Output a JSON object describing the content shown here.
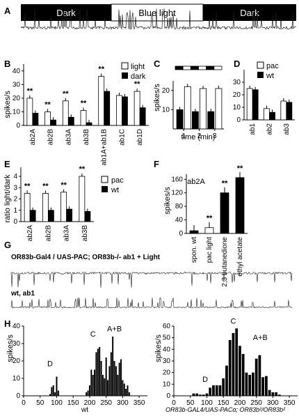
{
  "panels": {
    "a": "A",
    "b": "B",
    "c": "C",
    "d": "D",
    "e": "E",
    "f": "F",
    "g": "G",
    "h": "H"
  },
  "light_bar": {
    "left": "Dark",
    "middle": "Blue light",
    "right": "Dark"
  },
  "colors": {
    "black": "#000000",
    "white": "#ffffff",
    "trace": "#1a1a1a"
  },
  "panel_b": {
    "ylabel": "spikes/s",
    "legend": [
      "light",
      "dark"
    ],
    "sig": "**",
    "chart_data": {
      "type": "bar",
      "categories": [
        "ab2A",
        "ab2B",
        "ab3A",
        "ab3B",
        "ab1A+ab1B",
        "ab1C",
        "ab1D"
      ],
      "series": [
        {
          "name": "light",
          "values": [
            20,
            10,
            18,
            11,
            36,
            22,
            25
          ]
        },
        {
          "name": "dark",
          "values": [
            9,
            4,
            6,
            2,
            25,
            21,
            13
          ]
        }
      ],
      "ylim": [
        0,
        45
      ],
      "yticks": [
        0,
        10,
        20,
        30,
        40
      ],
      "sig_index": [
        0,
        1,
        2,
        3,
        4,
        6
      ]
    }
  },
  "panel_c": {
    "ylabel": "spikes/s",
    "xlabel": "time (min)",
    "chart_data": {
      "type": "bar",
      "values": [
        10,
        22,
        9,
        21,
        9,
        21
      ],
      "colors": [
        "black",
        "white",
        "black",
        "white",
        "black",
        "white"
      ],
      "ylim": [
        0,
        25
      ],
      "yticks": [
        10,
        20
      ],
      "xticks": [
        "1",
        "2",
        "3"
      ]
    }
  },
  "panel_d": {
    "legend": [
      "pac",
      "wt"
    ],
    "chart_data": {
      "type": "bar",
      "categories": [
        "ab1",
        "ab2",
        "ab3"
      ],
      "series": [
        {
          "name": "pac",
          "values": [
            25,
            9,
            15
          ]
        },
        {
          "name": "wt",
          "values": [
            24,
            6,
            14
          ]
        }
      ],
      "ylim": [
        0,
        40
      ],
      "yticks": [
        0,
        10,
        20,
        30
      ]
    }
  },
  "panel_e": {
    "ylabel": "ratio light/dark",
    "legend": [
      "pac",
      "wt"
    ],
    "sig": "**",
    "chart_data": {
      "type": "bar",
      "categories": [
        "ab2A",
        "ab2B",
        "ab3A",
        "ab3B"
      ],
      "series": [
        {
          "name": "pac",
          "values": [
            2.5,
            2.5,
            2.6,
            4.0
          ]
        },
        {
          "name": "wt",
          "values": [
            1.0,
            1.0,
            1.1,
            0.9
          ]
        }
      ],
      "ylim": [
        0,
        4.8
      ],
      "yticks": [
        0,
        1,
        2,
        3,
        4
      ]
    }
  },
  "panel_f": {
    "ylabel": "spikes/s",
    "title": "ab2A",
    "sig": "**",
    "chart_data": {
      "type": "bar",
      "categories": [
        "spon. wt",
        "pac light",
        "2,3 butanedione",
        "ethyl acetate"
      ],
      "values": [
        8,
        17,
        120,
        165
      ],
      "colors": [
        "black",
        "white",
        "black",
        "black"
      ],
      "ylim": [
        0,
        175
      ],
      "yticks": [
        0,
        40,
        80,
        120,
        160
      ],
      "sig_index": [
        1,
        2,
        3
      ]
    }
  },
  "panel_g": {
    "label1": "OR83b-Gal4 / UAS-PAC; OR83b-/-  ab1  + Light",
    "label2": "wt, ab1"
  },
  "panel_h": {
    "left": {
      "ylabel": "spikes/s",
      "xlabel": "wt",
      "peaks": {
        "d": "D",
        "c": "C",
        "ab": "A+B"
      },
      "chart_data": {
        "type": "bar",
        "x": [
          80,
          85,
          90,
          95,
          100,
          105,
          190,
          195,
          200,
          205,
          210,
          215,
          220,
          225,
          230,
          235,
          240,
          245,
          250,
          255,
          260,
          265,
          270,
          275,
          280,
          285,
          290,
          295,
          300,
          305,
          310,
          315,
          320
        ],
        "values": [
          1,
          5,
          6,
          2,
          11,
          3,
          2,
          3,
          6,
          15,
          12,
          15,
          25,
          27,
          28,
          20,
          12,
          10,
          22,
          9,
          17,
          25,
          34,
          20,
          17,
          12,
          19,
          21,
          9,
          7,
          4,
          6,
          2
        ],
        "xlim": [
          0,
          375
        ],
        "ylim": [
          0,
          40
        ],
        "xticks": [
          0,
          50,
          100,
          150,
          200,
          250,
          300,
          350
        ],
        "yticks": [
          0,
          10,
          20,
          30,
          40
        ]
      }
    },
    "right": {
      "ylabel": "spikes/s",
      "xlabel": "OR83b-GAL4/UAS-PACα; OR83b²/OR83b²",
      "peaks": {
        "d": "D",
        "c": "C",
        "ab": "A+B"
      },
      "chart_data": {
        "type": "bar",
        "x": [
          60,
          70,
          80,
          90,
          100,
          110,
          120,
          130,
          140,
          150,
          160,
          170,
          180,
          190,
          200,
          210,
          220,
          230,
          240,
          250,
          260,
          270,
          280,
          290,
          300,
          310,
          320
        ],
        "values": [
          2,
          2,
          1,
          1,
          2,
          7,
          9,
          9,
          9,
          15,
          26,
          48,
          54,
          58,
          43,
          36,
          20,
          18,
          20,
          32,
          35,
          16,
          17,
          5,
          3,
          3,
          1
        ],
        "xlim": [
          0,
          375
        ],
        "ylim": [
          0,
          60
        ],
        "xticks": [
          0,
          50,
          100,
          150,
          200,
          250,
          300,
          350
        ],
        "yticks": [
          0,
          10,
          20,
          30,
          40,
          50,
          60
        ]
      }
    }
  }
}
